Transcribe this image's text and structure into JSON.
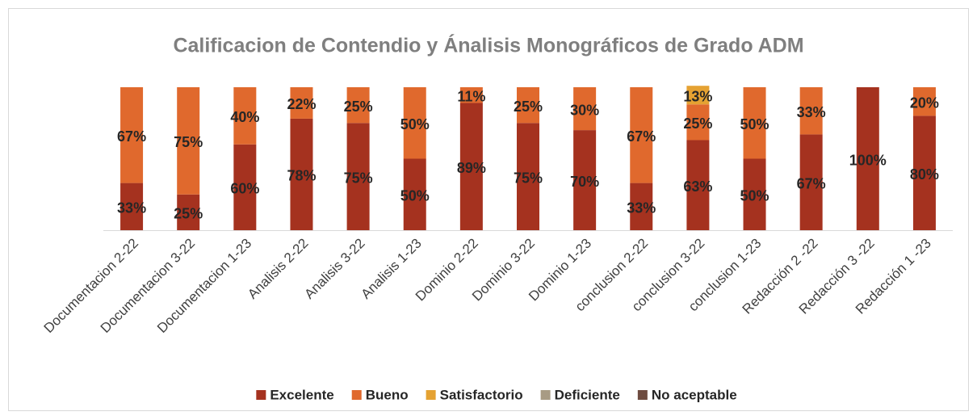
{
  "chart_data": {
    "type": "stacked_bar",
    "title": "Calificacion de Contendio y Ánalisis Monográficos de Grado ADM",
    "categories": [
      "Documentacion 2-22",
      "Documentacion 3-22",
      "Documentacion 1-23",
      "Analisis 2-22",
      "Analisis 3-22",
      "Analisis 1-23",
      "Dominio 2-22",
      "Dominio 3-22",
      "Dominio 1-23",
      "conclusion 2-22",
      "conclusion 3-22",
      "conclusion 1-23",
      "Redacción 2 -22",
      "Redacción 3 -22",
      "Redacción 1 -23"
    ],
    "ylim": [
      0,
      100
    ],
    "legend": "bottom",
    "series": [
      {
        "name": "Excelente",
        "color": "#a5321f",
        "values": [
          33,
          25,
          60,
          78,
          75,
          50,
          89,
          75,
          70,
          33,
          63,
          50,
          67,
          100,
          80
        ],
        "value_labels": [
          "33%",
          "25%",
          "60%",
          "78%",
          "75%",
          "50%",
          "89%",
          "75%",
          "70%",
          "33%",
          "63%",
          "50%",
          "67%",
          "100%",
          "80%"
        ]
      },
      {
        "name": "Bueno",
        "color": "#e0692d",
        "values": [
          67,
          75,
          40,
          22,
          25,
          50,
          11,
          25,
          30,
          67,
          25,
          50,
          33,
          0,
          20
        ],
        "value_labels": [
          "67%",
          "75%",
          "40%",
          "22%",
          "25%",
          "50%",
          "11%",
          "25%",
          "30%",
          "67%",
          "25%",
          "50%",
          "33%",
          null,
          "20%"
        ]
      },
      {
        "name": "Satisfactorio",
        "color": "#e5a232",
        "values": [
          0,
          0,
          0,
          0,
          0,
          0,
          0,
          0,
          0,
          0,
          13,
          0,
          0,
          0,
          0
        ],
        "value_labels": [
          null,
          null,
          null,
          null,
          null,
          null,
          null,
          null,
          null,
          null,
          "13%",
          null,
          null,
          null,
          null
        ]
      },
      {
        "name": "Deficiente",
        "color": "#a89b84",
        "values": [
          0,
          0,
          0,
          0,
          0,
          0,
          0,
          0,
          0,
          0,
          0,
          0,
          0,
          0,
          0
        ]
      },
      {
        "name": "No aceptable",
        "color": "#6e4c40",
        "values": [
          0,
          0,
          0,
          0,
          0,
          0,
          0,
          0,
          0,
          0,
          0,
          0,
          0,
          0,
          0
        ]
      }
    ]
  }
}
